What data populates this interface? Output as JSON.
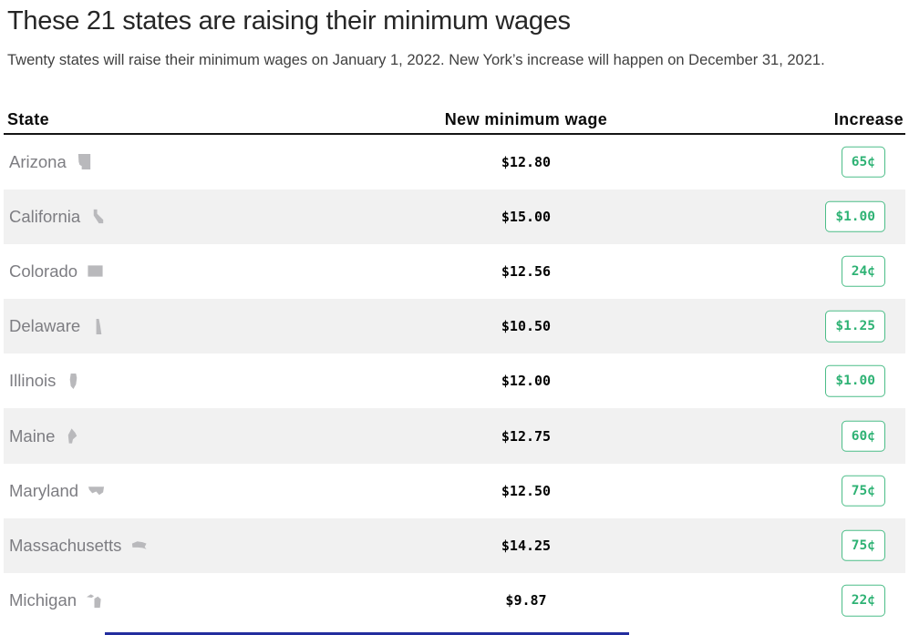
{
  "header": {
    "title": "These 21 states are raising their minimum wages",
    "subtitle": "Twenty states will raise their minimum wages on January 1, 2022. New York’s increase will happen on December 31, 2021."
  },
  "table": {
    "columns": [
      "State",
      "New minimum wage",
      "Increase"
    ],
    "rows": [
      {
        "state": "Arizona",
        "icon": "arizona-state-icon",
        "wage": "$12.80",
        "increase": "65¢"
      },
      {
        "state": "California",
        "icon": "california-state-icon",
        "wage": "$15.00",
        "increase": "$1.00"
      },
      {
        "state": "Colorado",
        "icon": "colorado-state-icon",
        "wage": "$12.56",
        "increase": "24¢"
      },
      {
        "state": "Delaware",
        "icon": "delaware-state-icon",
        "wage": "$10.50",
        "increase": "$1.25"
      },
      {
        "state": "Illinois",
        "icon": "illinois-state-icon",
        "wage": "$12.00",
        "increase": "$1.00"
      },
      {
        "state": "Maine",
        "icon": "maine-state-icon",
        "wage": "$12.75",
        "increase": "60¢"
      },
      {
        "state": "Maryland",
        "icon": "maryland-state-icon",
        "wage": "$12.50",
        "increase": "75¢"
      },
      {
        "state": "Massachusetts",
        "icon": "massachusetts-state-icon",
        "wage": "$14.25",
        "increase": "75¢"
      },
      {
        "state": "Michigan",
        "icon": "michigan-state-icon",
        "wage": "$9.87",
        "increase": "22¢"
      }
    ]
  },
  "chart_data": {
    "type": "table",
    "title": "These 21 states are raising their minimum wages",
    "subtitle": "Twenty states will raise their minimum wages on January 1, 2022. New York’s increase will happen on December 31, 2021.",
    "columns": [
      "State",
      "New minimum wage",
      "Increase"
    ],
    "rows_visible": [
      [
        "Arizona",
        "$12.80",
        "65¢"
      ],
      [
        "California",
        "$15.00",
        "$1.00"
      ],
      [
        "Colorado",
        "$12.56",
        "24¢"
      ],
      [
        "Delaware",
        "$10.50",
        "$1.25"
      ],
      [
        "Illinois",
        "$12.00",
        "$1.00"
      ],
      [
        "Maine",
        "$12.75",
        "60¢"
      ],
      [
        "Maryland",
        "$12.50",
        "75¢"
      ],
      [
        "Massachusetts",
        "$14.25",
        "75¢"
      ],
      [
        "Michigan",
        "$9.87",
        "22¢"
      ]
    ]
  },
  "colors": {
    "badge_border_green": "#4cbd88",
    "badge_text_green": "#2eb274",
    "row_alt_gray": "#f1f1f1",
    "state_text_gray": "#7d7d82",
    "icon_gray": "#b9b9bc",
    "bottom_divider_blue": "#232d9e"
  }
}
